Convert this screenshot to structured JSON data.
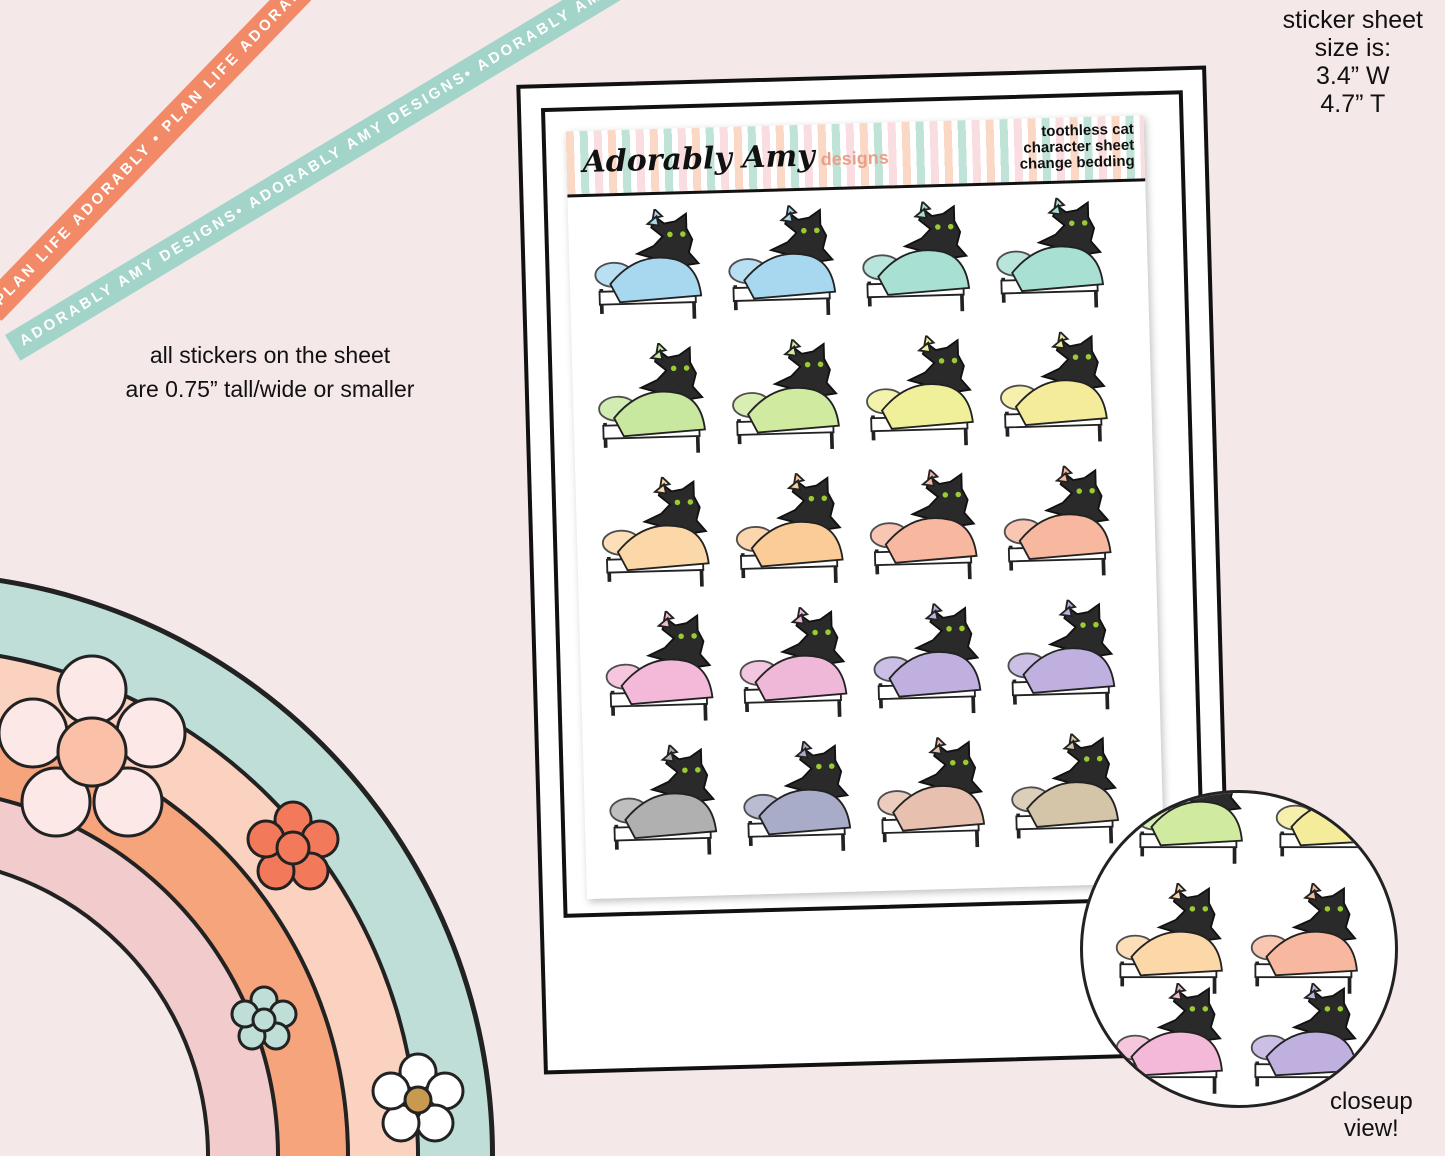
{
  "ribbons": {
    "orange": "PLAN LIFE ADORABLY • PLAN LIFE ADORABLY • PLAN LIFE ADORABLY",
    "teal": "ADORABLY AMY DESIGNS• ADORABLY AMY DESIGNS• ADORABLY AMY DESIGNS•"
  },
  "size_note": {
    "line1": "sticker sheet",
    "line2": "size is:",
    "line3": "3.4” W",
    "line4": "4.7” T"
  },
  "sticker_note": {
    "line1": "all stickers on the sheet",
    "line2": "are 0.75” tall/wide or smaller"
  },
  "closeup_note": {
    "line1": "closeup",
    "line2": "view!"
  },
  "sheet": {
    "logo": "Adorably Amy",
    "logo_sub": "designs",
    "title1": "toothless cat",
    "title2": "character sheet",
    "title3": "change bedding"
  },
  "sticker_colors": [
    "#a8d8f0",
    "#a8d8f0",
    "#a8e0d4",
    "#a8e0d4",
    "#c8e8a0",
    "#d0eaa0",
    "#f0f09a",
    "#f4ec9a",
    "#fcd8a8",
    "#fccc98",
    "#f8b8a0",
    "#f8b8a0",
    "#f4b8d8",
    "#f0b8d8",
    "#c0b0e0",
    "#c0b0e0",
    "#b0b0b0",
    "#a8acc8",
    "#e8c0b0",
    "#d4c4a8"
  ],
  "colors": {
    "background": "#f5e8e8",
    "rainbow": [
      "#bfded8",
      "#fbd2c0",
      "#f6a47c",
      "#f2cccc"
    ]
  }
}
